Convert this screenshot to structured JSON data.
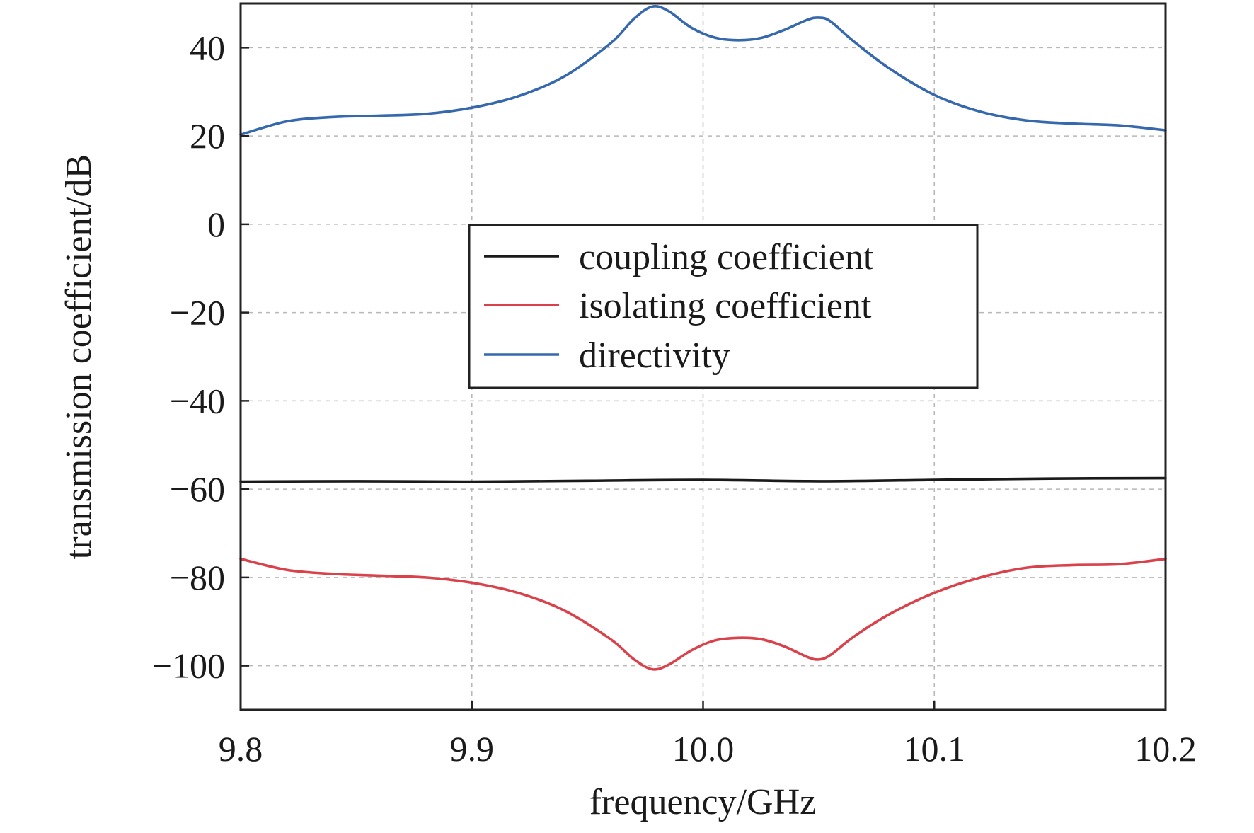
{
  "chart_data": {
    "type": "line",
    "title": "",
    "xlabel": "frequency/GHz",
    "ylabel": "transmission coefficient/dB",
    "xlim": [
      9.8,
      10.2
    ],
    "ylim": [
      -110,
      50
    ],
    "xticks": [
      9.8,
      9.9,
      10.0,
      10.1,
      10.2
    ],
    "xtick_labels": [
      "9.8",
      "9.9",
      "10.0",
      "10.1",
      "10.2"
    ],
    "yticks": [
      40,
      20,
      0,
      -20,
      -40,
      -60,
      -80,
      -100
    ],
    "ytick_labels": [
      "40",
      "20",
      "0",
      "−20",
      "−40",
      "−60",
      "−80",
      "−100"
    ],
    "grid": true,
    "legend_position": "center",
    "series": [
      {
        "name": "coupling coefficient",
        "color": "#1a1a1a",
        "x": [
          9.8,
          9.85,
          9.9,
          9.95,
          10.0,
          10.05,
          10.1,
          10.15,
          10.2
        ],
        "y": [
          -58.3,
          -58.2,
          -58.3,
          -58.1,
          -57.9,
          -58.2,
          -57.9,
          -57.6,
          -57.5
        ]
      },
      {
        "name": "isolating coefficient",
        "color": "#d9424b",
        "x": [
          9.8,
          9.82,
          9.84,
          9.86,
          9.88,
          9.9,
          9.92,
          9.94,
          9.96,
          9.97,
          9.978,
          9.985,
          9.995,
          10.005,
          10.015,
          10.025,
          10.035,
          10.045,
          10.05,
          10.055,
          10.065,
          10.08,
          10.1,
          10.12,
          10.14,
          10.16,
          10.18,
          10.2
        ],
        "y": [
          -75.8,
          -78.3,
          -79.2,
          -79.6,
          -80.0,
          -81.2,
          -83.5,
          -87.5,
          -94.0,
          -98.5,
          -100.8,
          -99.8,
          -96.5,
          -94.3,
          -93.7,
          -94.0,
          -95.6,
          -98.0,
          -98.6,
          -97.6,
          -93.5,
          -88.5,
          -83.5,
          -80.0,
          -77.8,
          -77.2,
          -77.0,
          -75.8
        ]
      },
      {
        "name": "directivity",
        "color": "#3568ad",
        "x": [
          9.8,
          9.82,
          9.84,
          9.86,
          9.88,
          9.9,
          9.92,
          9.94,
          9.96,
          9.97,
          9.978,
          9.985,
          9.995,
          10.005,
          10.015,
          10.025,
          10.035,
          10.045,
          10.05,
          10.055,
          10.065,
          10.08,
          10.1,
          10.12,
          10.14,
          10.16,
          10.18,
          10.2
        ],
        "y": [
          20.3,
          23.3,
          24.3,
          24.6,
          25.0,
          26.4,
          29.0,
          33.5,
          41.0,
          46.5,
          49.3,
          48.3,
          44.5,
          42.3,
          41.7,
          42.2,
          44.0,
          46.3,
          46.8,
          46.0,
          41.5,
          35.5,
          29.3,
          25.5,
          23.5,
          22.8,
          22.4,
          21.3
        ]
      }
    ]
  }
}
